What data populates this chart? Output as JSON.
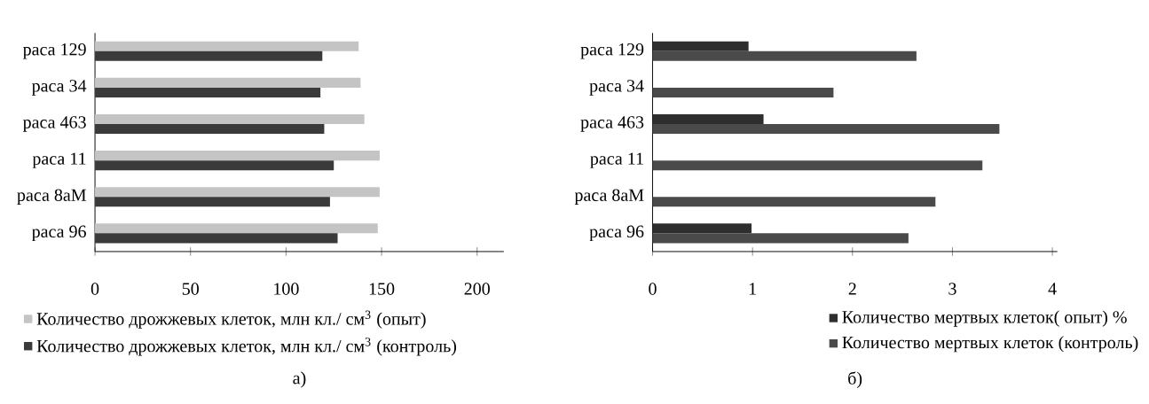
{
  "chart_data": [
    {
      "type": "bar",
      "orientation": "horizontal",
      "categories": [
        "раса 129",
        "раса 34",
        "раса 463",
        "раса 11",
        "раса 8аМ",
        "раса 96"
      ],
      "series": [
        {
          "name": "Количество дрожжевых клеток, млн кл./ см$^{3}$ (опыт)",
          "color": "#c4c4c4",
          "values": [
            138,
            139,
            141,
            149,
            149,
            148
          ]
        },
        {
          "name": "Количество дрожжевых клеток, млн кл./ см$^{3}$ (контроль)",
          "color": "#3a3a3a",
          "values": [
            119,
            118,
            120,
            125,
            123,
            127
          ]
        }
      ],
      "xlim": [
        0,
        214
      ],
      "xticks": [
        0,
        50,
        100,
        150,
        200
      ],
      "legend": "bottom",
      "annotations": [
        "а)"
      ]
    },
    {
      "type": "bar",
      "orientation": "horizontal",
      "categories": [
        "раса 129",
        "раса 34",
        "раса 463",
        "раса 11",
        "раса 8аМ",
        "раса 96"
      ],
      "series": [
        {
          "name": "Количество мертвых клеток( опыт) %",
          "color": "#2e2e2e",
          "values": [
            0.96,
            null,
            1.11,
            null,
            null,
            0.99
          ]
        },
        {
          "name": "Количество мертвых клеток (контроль)",
          "color": "#4a4a4a",
          "values": [
            2.64,
            1.81,
            3.47,
            3.3,
            2.83,
            2.56
          ]
        }
      ],
      "xlim": [
        0,
        4.05
      ],
      "xticks": [
        0,
        1,
        2,
        3,
        4
      ],
      "legend": "bottom",
      "annotations": [
        "б)"
      ]
    }
  ]
}
